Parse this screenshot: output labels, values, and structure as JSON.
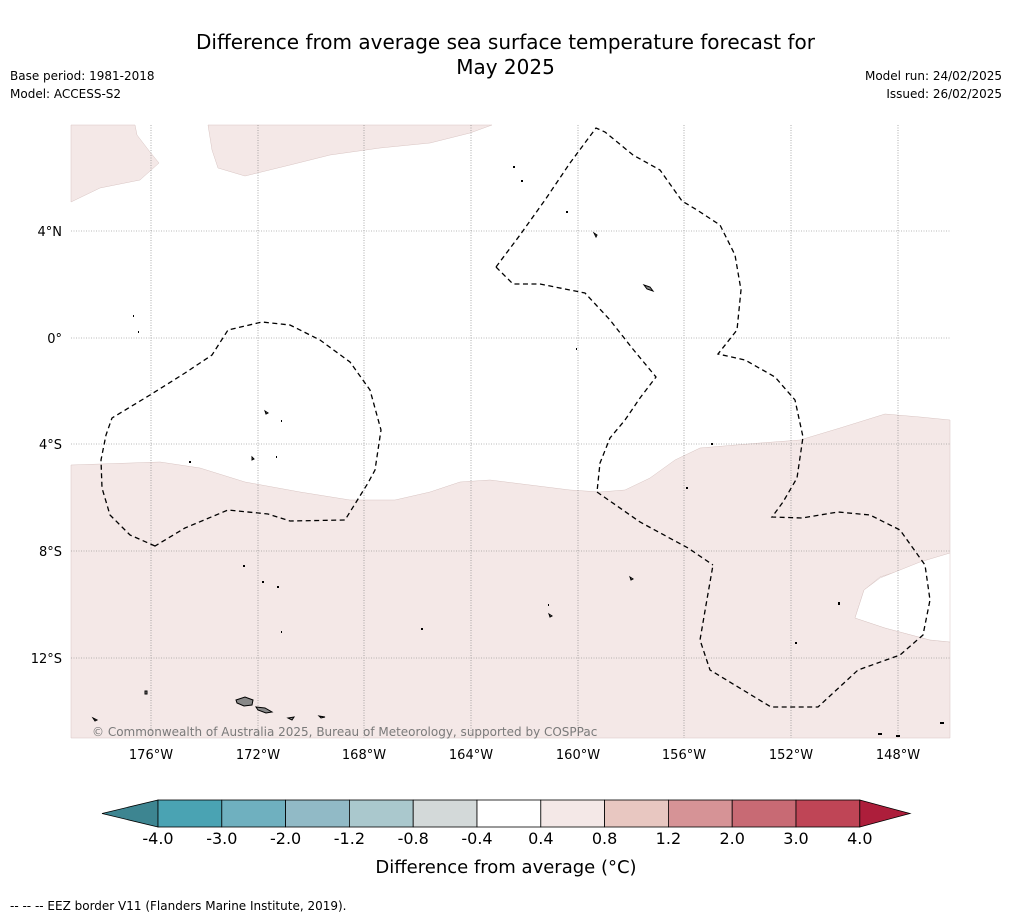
{
  "header": {
    "title_line1": "Difference from average sea surface temperature forecast for",
    "title_line2": "May 2025",
    "base_period": "Base period: 1981-2018",
    "model": "Model: ACCESS-S2",
    "model_run": "Model run: 24/02/2025",
    "issued": "Issued: 26/02/2025"
  },
  "map": {
    "lat_labels": [
      "4°N",
      "0°",
      "4°S",
      "8°S",
      "12°S"
    ],
    "lon_labels": [
      "176°W",
      "172°W",
      "168°W",
      "164°W",
      "160°W",
      "156°W",
      "152°W",
      "148°W"
    ],
    "copyright": "© Commonwealth of Australia 2025, Bureau of Meteorology, supported by COSPPac",
    "fill_color_main": "#f4e8e7",
    "land_color": "#888888"
  },
  "colorbar": {
    "ticks": [
      "-4.0",
      "-3.0",
      "-2.0",
      "-1.2",
      "-0.8",
      "-0.4",
      "0.4",
      "0.8",
      "1.2",
      "2.0",
      "3.0",
      "4.0"
    ],
    "colors": [
      "#3d8591",
      "#4aa3b3",
      "#6fb0bf",
      "#91bac6",
      "#aac8cd",
      "#d3d9d9",
      "#ffffff",
      "#f4e8e7",
      "#e8c7c1",
      "#d69396",
      "#c86a74",
      "#bf4556",
      "#ad1e3b"
    ],
    "label": "Difference from average (°C)"
  },
  "footnote": "--  --  -- EEZ border V11 (Flanders Marine Institute, 2019)."
}
